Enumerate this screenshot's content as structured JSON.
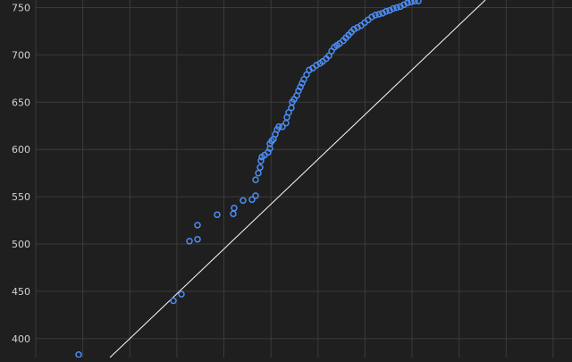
{
  "chart_data": {
    "type": "scatter",
    "title": "",
    "xlabel": "",
    "ylabel": "",
    "y_ticks": [
      "400",
      "450",
      "500",
      "550",
      "600",
      "650",
      "700",
      "750"
    ],
    "ylim": [
      380,
      758
    ],
    "xlim": [
      0,
      600
    ],
    "grid": true,
    "legend": "none",
    "reference_line": {
      "style": "diagonal",
      "points": [
        [
          83,
          380
        ],
        [
          503,
          758
        ]
      ]
    },
    "colors": {
      "background": "#1f1f1f",
      "grid": "#3a3a3a",
      "axis_text": "#d2d2d2",
      "points": "#4b8df5",
      "reference_line": "#ffffff"
    },
    "points": [
      [
        48,
        383
      ],
      [
        154,
        440
      ],
      [
        163,
        447
      ],
      [
        172,
        503
      ],
      [
        181,
        505
      ],
      [
        181,
        520
      ],
      [
        203,
        531
      ],
      [
        221,
        532
      ],
      [
        222,
        538
      ],
      [
        232,
        546
      ],
      [
        242,
        547
      ],
      [
        246,
        551
      ],
      [
        246,
        568
      ],
      [
        249,
        575
      ],
      [
        251,
        581
      ],
      [
        252,
        588
      ],
      [
        253,
        592
      ],
      [
        256,
        594
      ],
      [
        260,
        597
      ],
      [
        262,
        601
      ],
      [
        262,
        606
      ],
      [
        264,
        609
      ],
      [
        266,
        611
      ],
      [
        268,
        616
      ],
      [
        270,
        621
      ],
      [
        272,
        624
      ],
      [
        276,
        624
      ],
      [
        280,
        628
      ],
      [
        281,
        634
      ],
      [
        283,
        639
      ],
      [
        286,
        644
      ],
      [
        287,
        650
      ],
      [
        289,
        653
      ],
      [
        292,
        657
      ],
      [
        294,
        662
      ],
      [
        296,
        666
      ],
      [
        298,
        670
      ],
      [
        300,
        674
      ],
      [
        303,
        679
      ],
      [
        306,
        684
      ],
      [
        310,
        686
      ],
      [
        314,
        689
      ],
      [
        318,
        691
      ],
      [
        321,
        693
      ],
      [
        325,
        696
      ],
      [
        328,
        699
      ],
      [
        331,
        704
      ],
      [
        334,
        708
      ],
      [
        337,
        710
      ],
      [
        340,
        712
      ],
      [
        344,
        715
      ],
      [
        347,
        718
      ],
      [
        350,
        721
      ],
      [
        353,
        724
      ],
      [
        356,
        727
      ],
      [
        360,
        729
      ],
      [
        364,
        731
      ],
      [
        368,
        734
      ],
      [
        372,
        737
      ],
      [
        376,
        740
      ],
      [
        380,
        742
      ],
      [
        384,
        743
      ],
      [
        388,
        744
      ],
      [
        392,
        746
      ],
      [
        396,
        747
      ],
      [
        400,
        749
      ],
      [
        404,
        750
      ],
      [
        408,
        751
      ],
      [
        412,
        753
      ],
      [
        416,
        755
      ],
      [
        420,
        756
      ],
      [
        424,
        757
      ],
      [
        428,
        757
      ]
    ]
  }
}
